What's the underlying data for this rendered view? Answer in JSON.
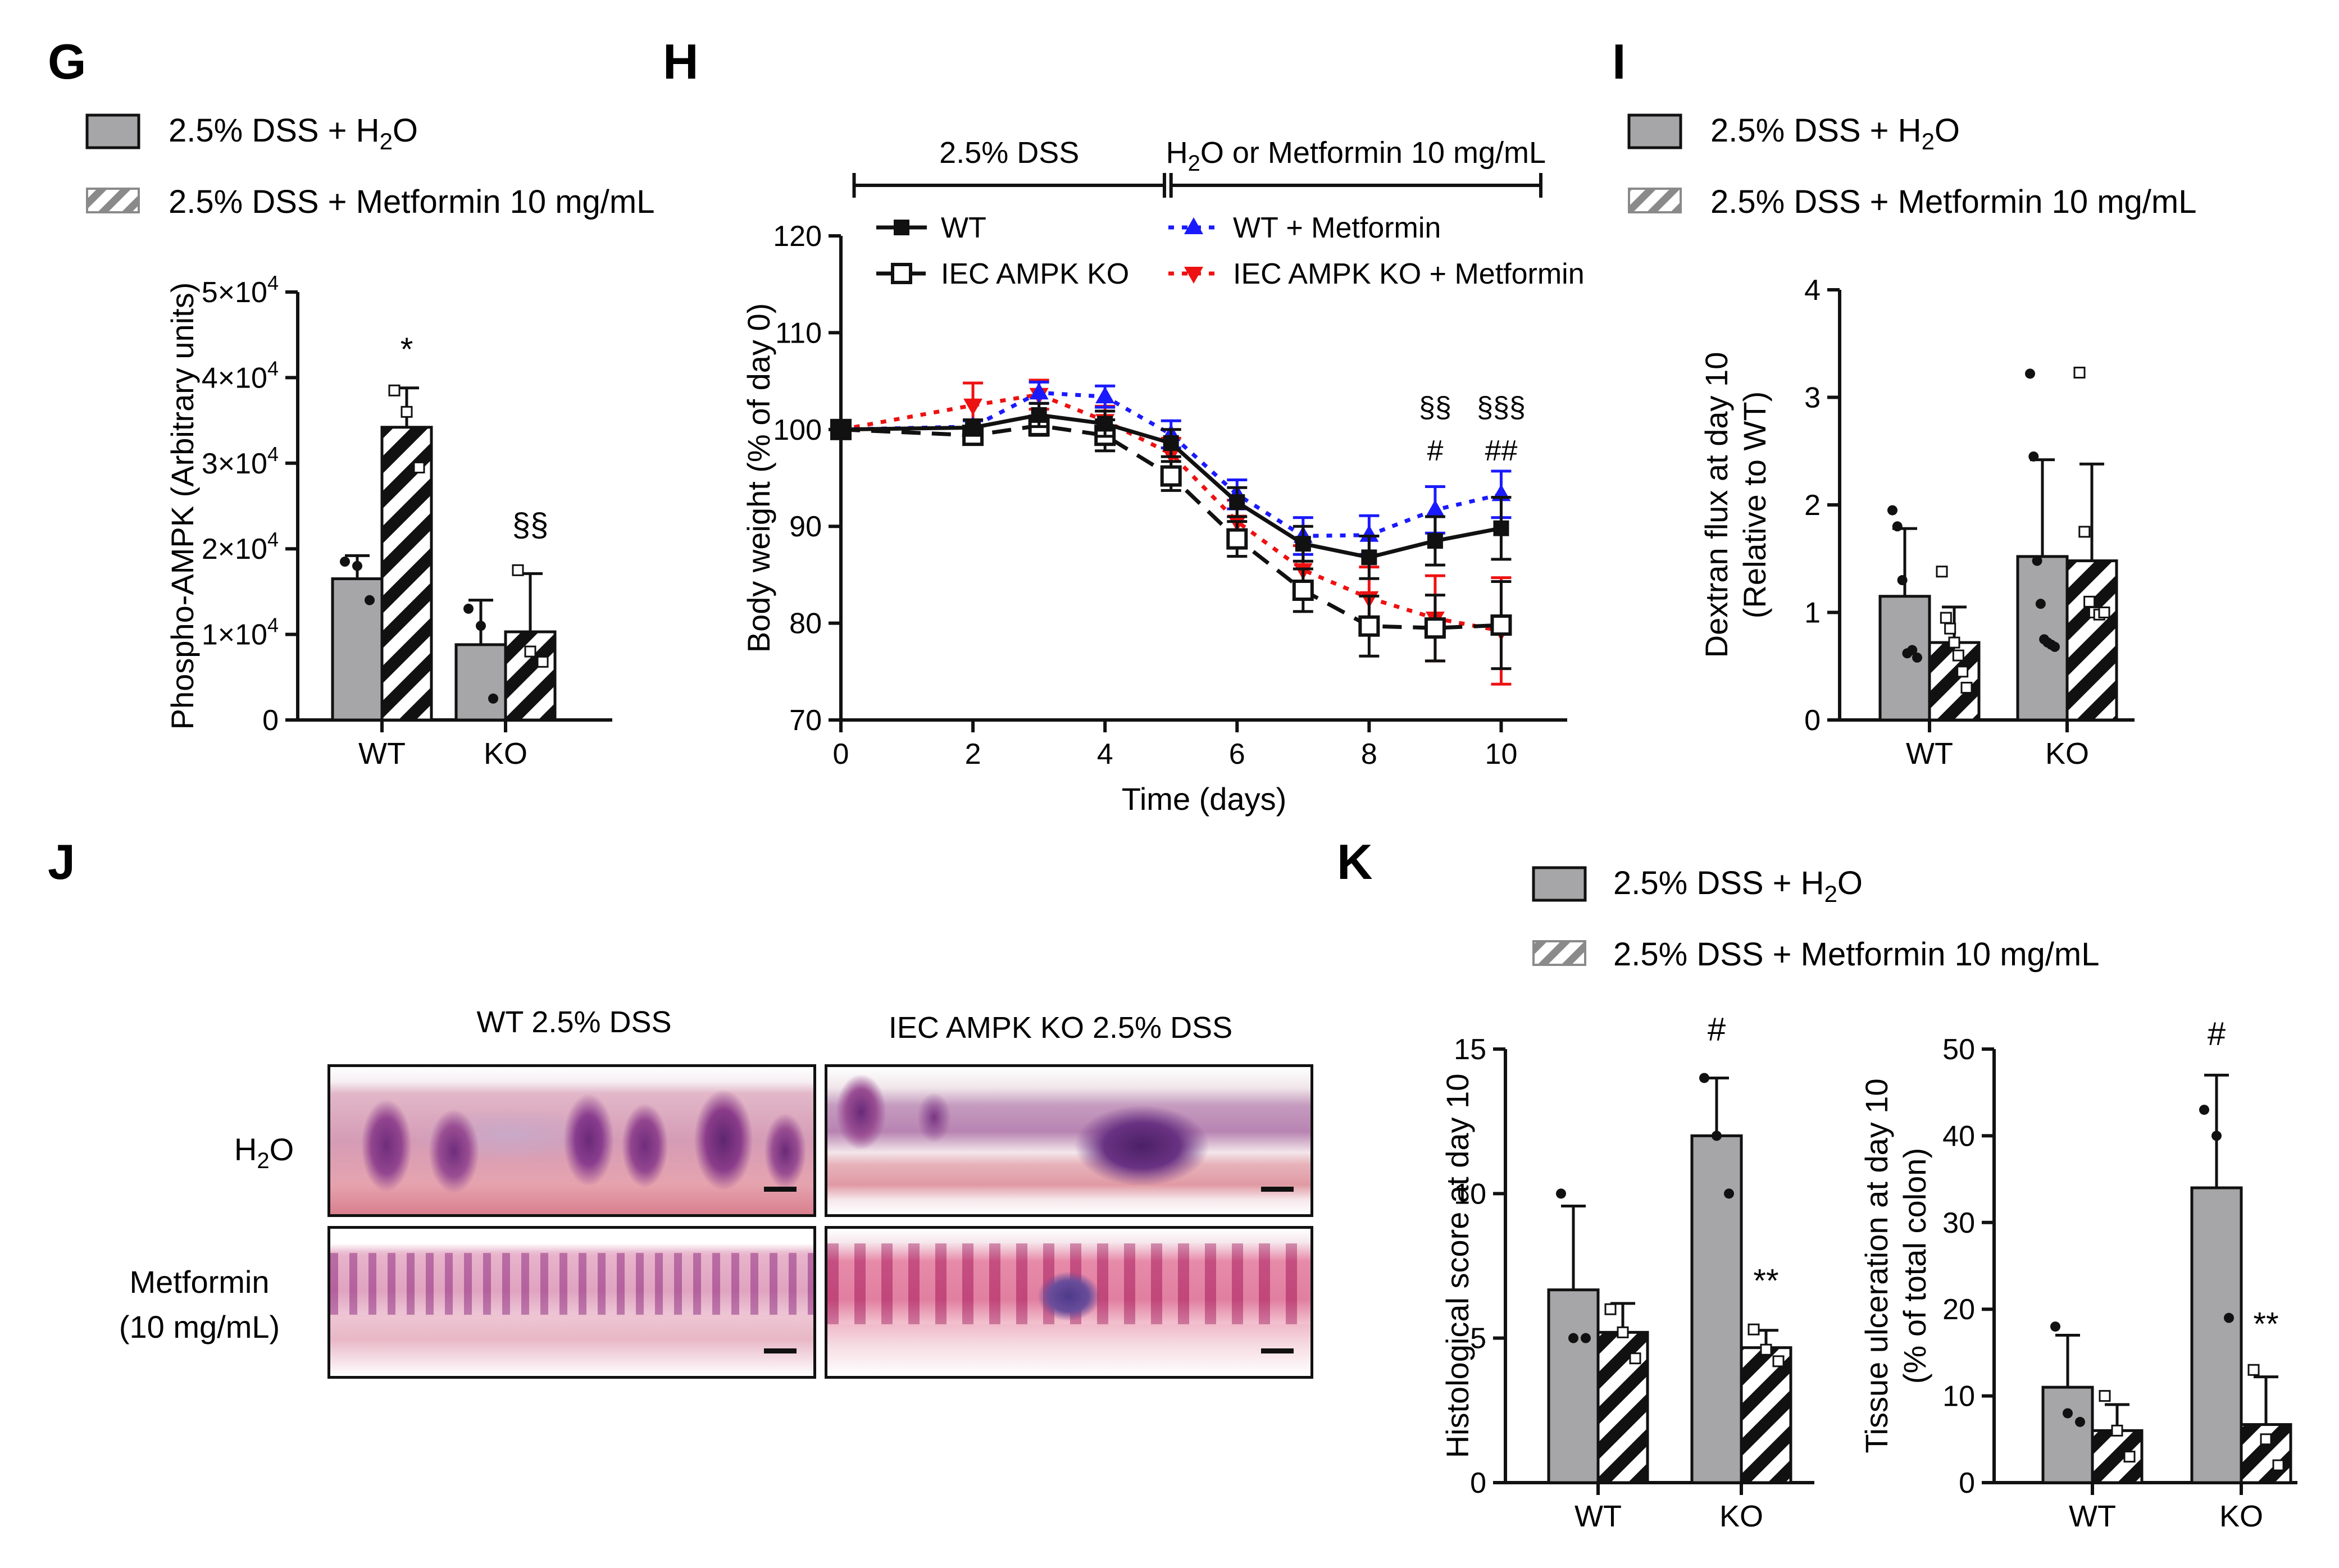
{
  "colors": {
    "gray_bar": "#a6a6a8",
    "black": "#111111",
    "blue": "#1a1aff",
    "red": "#ee1111"
  },
  "panel_letters": {
    "G": "G",
    "H": "H",
    "I": "I",
    "J": "J",
    "K": "K"
  },
  "legend": {
    "h2o_prefix": "2.5% DSS + H",
    "h2o_sub": "2",
    "h2o_suffix": "O",
    "metformin": "2.5% DSS + Metformin 10 mg/mL"
  },
  "chart_data": [
    {
      "id": "G",
      "type": "bar",
      "ylabel": "Phospho-AMPK (Arbitrary units)",
      "ylim": [
        0,
        50000
      ],
      "yticks": [
        {
          "value": 0,
          "mant": "0",
          "exp": ""
        },
        {
          "value": 10000,
          "mant": "1×10",
          "exp": "4"
        },
        {
          "value": 20000,
          "mant": "2×10",
          "exp": "4"
        },
        {
          "value": 30000,
          "mant": "3×10",
          "exp": "4"
        },
        {
          "value": 40000,
          "mant": "4×10",
          "exp": "4"
        },
        {
          "value": 50000,
          "mant": "5×10",
          "exp": "4"
        }
      ],
      "categories": [
        "WT",
        "KO"
      ],
      "series": [
        {
          "name": "2.5% DSS + H2O",
          "values": [
            16500,
            8800
          ],
          "errors": [
            2700,
            5200
          ],
          "points": [
            [
              18500,
              18000,
              14000
            ],
            [
              13000,
              11000,
              2500
            ]
          ]
        },
        {
          "name": "2.5% DSS + Metformin 10 mg/mL",
          "values": [
            34200,
            10300
          ],
          "errors": [
            4600,
            6800
          ],
          "points": [
            [
              38500,
              36000,
              29500
            ],
            [
              17500,
              8000,
              6800
            ]
          ]
        }
      ],
      "annotations": [
        {
          "text": "*",
          "cat": 0,
          "series": 1,
          "value": 42000
        },
        {
          "text": "§§",
          "cat": 1,
          "series": 1,
          "value": 21500
        }
      ]
    },
    {
      "id": "H",
      "type": "line",
      "xlabel": "Time (days)",
      "ylabel": "Body weight (% of day 0)",
      "xlim": [
        0,
        11
      ],
      "xticks": [
        0,
        2,
        4,
        6,
        8,
        10
      ],
      "ylim": [
        70,
        120
      ],
      "yticks": [
        70,
        80,
        90,
        100,
        110,
        120
      ],
      "phases": [
        {
          "label": "2.5% DSS",
          "from": 0.2,
          "to": 4.9
        },
        {
          "label_prefix": "H",
          "label_sub": "2",
          "label_suffix": "O or Metformin 10 mg/mL",
          "from": 5.0,
          "to": 10.6
        }
      ],
      "series": [
        {
          "name": "WT",
          "style": "solid",
          "color": "#111111",
          "marker": "filled-square",
          "x": [
            0,
            2,
            3,
            4,
            5,
            6,
            7,
            8,
            9,
            10
          ],
          "y": [
            100,
            100.2,
            101.5,
            100.6,
            98.6,
            92.5,
            88.2,
            86.8,
            88.5,
            89.8
          ],
          "err": [
            0,
            0.8,
            1.2,
            1.3,
            1.4,
            1.5,
            1.8,
            2.2,
            2.5,
            3.2
          ]
        },
        {
          "name": "IEC AMPK KO",
          "style": "dashed",
          "color": "#111111",
          "marker": "open-square",
          "x": [
            0,
            2,
            3,
            4,
            5,
            6,
            7,
            8,
            9,
            10
          ],
          "y": [
            100,
            99.4,
            100.4,
            99.4,
            95.2,
            88.7,
            83.4,
            79.7,
            79.5,
            79.8
          ],
          "err": [
            0,
            0.8,
            1,
            1.6,
            1.5,
            1.8,
            2.2,
            3.1,
            3.4,
            4.5
          ]
        },
        {
          "name": "WT + Metformin",
          "style": "dotted",
          "color": "#1a1aff",
          "marker": "filled-triangle",
          "x": [
            0,
            2,
            3,
            4,
            5,
            6,
            7,
            8,
            9,
            10
          ],
          "y": [
            100,
            100.3,
            103.8,
            103.4,
            99.5,
            93.3,
            89,
            89.1,
            91.7,
            93.3
          ],
          "err": [
            0,
            0.6,
            1.1,
            1.1,
            1.4,
            1.5,
            1.9,
            2,
            2.4,
            2.4
          ]
        },
        {
          "name": "IEC AMPK KO + Metformin",
          "style": "dotted",
          "color": "#ee1111",
          "marker": "filled-down-triangle",
          "x": [
            0,
            2,
            3,
            4,
            5,
            6,
            7,
            8,
            9,
            10
          ],
          "y": [
            100,
            102.5,
            103.6,
            100.9,
            97.5,
            90.5,
            85.5,
            82.6,
            80.5,
            79.2
          ],
          "err": [
            0,
            2.3,
            1.5,
            1.5,
            1.6,
            2.2,
            2.5,
            3.2,
            4.4,
            5.5
          ]
        }
      ],
      "annotations": [
        {
          "text": "§§",
          "x": 9,
          "y": 101.3
        },
        {
          "text": "#",
          "x": 9,
          "y": 96.8
        },
        {
          "text": "§§§",
          "x": 10,
          "y": 101.3
        },
        {
          "text": "##",
          "x": 10,
          "y": 96.8
        }
      ]
    },
    {
      "id": "I",
      "type": "bar",
      "ylabel": "Dextran flux at day 10",
      "ylabel2": "(Relative to WT)",
      "ylim": [
        0,
        4
      ],
      "yticks": [
        {
          "value": 0,
          "mant": "0",
          "exp": ""
        },
        {
          "value": 1,
          "mant": "1",
          "exp": ""
        },
        {
          "value": 2,
          "mant": "2",
          "exp": ""
        },
        {
          "value": 3,
          "mant": "3",
          "exp": ""
        },
        {
          "value": 4,
          "mant": "4",
          "exp": ""
        }
      ],
      "categories": [
        "WT",
        "KO"
      ],
      "series": [
        {
          "name": "2.5% DSS + H2O",
          "values": [
            1.15,
            1.52
          ],
          "errors": [
            0.63,
            0.9
          ],
          "points": [
            [
              1.95,
              1.8,
              1.3,
              0.62,
              0.65,
              0.58
            ],
            [
              3.22,
              2.45,
              1.48,
              1.08,
              0.75,
              0.72,
              0.7,
              0.68
            ]
          ]
        },
        {
          "name": "2.5% DSS + Metformin 10 mg/mL",
          "values": [
            0.72,
            1.48
          ],
          "errors": [
            0.33,
            0.9
          ],
          "points": [
            [
              1.38,
              0.95,
              0.85,
              0.72,
              0.6,
              0.45,
              0.3
            ],
            [
              3.23,
              1.75,
              1.1,
              1.0,
              0.98,
              1.0
            ]
          ]
        }
      ]
    },
    {
      "id": "K1",
      "type": "bar",
      "ylabel": "Histological score at day 10",
      "ylim": [
        0,
        15
      ],
      "yticks": [
        {
          "value": 0,
          "mant": "0",
          "exp": ""
        },
        {
          "value": 5,
          "mant": "5",
          "exp": ""
        },
        {
          "value": 10,
          "mant": "10",
          "exp": ""
        },
        {
          "value": 15,
          "mant": "15",
          "exp": ""
        }
      ],
      "categories": [
        "WT",
        "KO"
      ],
      "series": [
        {
          "name": "2.5% DSS + H2O",
          "values": [
            6.67,
            12
          ],
          "errors": [
            2.9,
            2.0
          ],
          "points": [
            [
              10,
              5,
              5
            ],
            [
              14,
              12,
              10
            ]
          ]
        },
        {
          "name": "2.5% DSS + Metformin 10 mg/mL",
          "values": [
            5.2,
            4.67
          ],
          "errors": [
            1.0,
            0.6
          ],
          "points": [
            [
              6,
              5.2,
              4.3
            ],
            [
              5.3,
              4.6,
              4.2
            ]
          ]
        }
      ],
      "annotations": [
        {
          "text": "#",
          "cat": 1,
          "series": 0,
          "value": 15.3
        },
        {
          "text": "**",
          "cat": 1,
          "series": 1,
          "value": 6.6
        }
      ]
    },
    {
      "id": "K2",
      "type": "bar",
      "ylabel": "Tissue ulceration at day 10",
      "ylabel2": "(% of total colon)",
      "ylim": [
        0,
        50
      ],
      "yticks": [
        {
          "value": 0,
          "mant": "0",
          "exp": ""
        },
        {
          "value": 10,
          "mant": "10",
          "exp": ""
        },
        {
          "value": 20,
          "mant": "20",
          "exp": ""
        },
        {
          "value": 30,
          "mant": "30",
          "exp": ""
        },
        {
          "value": 40,
          "mant": "40",
          "exp": ""
        },
        {
          "value": 50,
          "mant": "50",
          "exp": ""
        }
      ],
      "categories": [
        "WT",
        "KO"
      ],
      "series": [
        {
          "name": "2.5% DSS + H2O",
          "values": [
            11,
            34
          ],
          "errors": [
            6,
            13
          ],
          "points": [
            [
              18,
              8,
              7
            ],
            [
              43,
              40,
              19
            ]
          ]
        },
        {
          "name": "2.5% DSS + Metformin 10 mg/mL",
          "values": [
            6,
            6.7
          ],
          "errors": [
            3,
            5.5
          ],
          "points": [
            [
              10,
              6,
              3
            ],
            [
              13,
              5,
              2
            ]
          ]
        }
      ],
      "annotations": [
        {
          "text": "#",
          "cat": 1,
          "series": 0,
          "value": 50.5
        },
        {
          "text": "**",
          "cat": 1,
          "series": 1,
          "value": 17
        }
      ]
    }
  ],
  "histology": {
    "col_titles": [
      "WT 2.5% DSS",
      "IEC AMPK KO 2.5% DSS"
    ],
    "row_h2o": {
      "prefix": "H",
      "sub": "2",
      "suffix": "O"
    },
    "row_met_line1": "Metformin",
    "row_met_line2": "(10 mg/mL)"
  }
}
